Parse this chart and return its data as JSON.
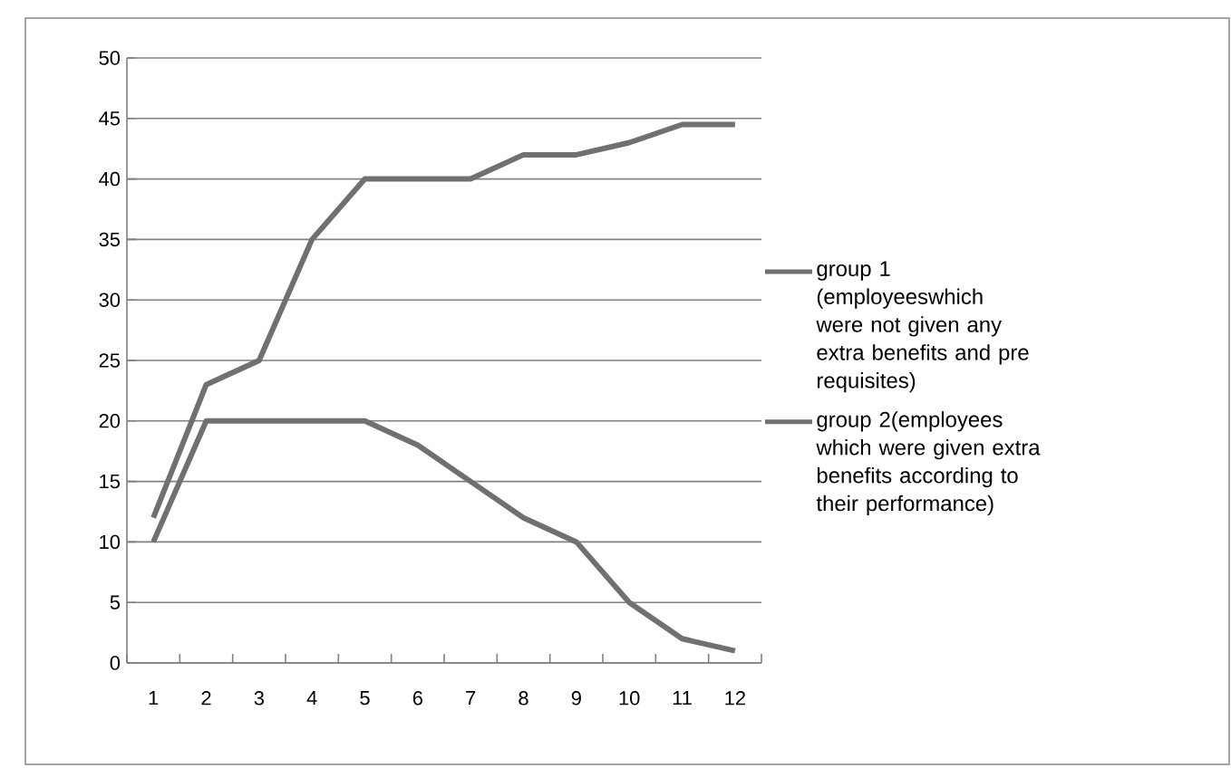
{
  "chart_data": {
    "type": "line",
    "categories": [
      "1",
      "2",
      "3",
      "4",
      "5",
      "6",
      "7",
      "8",
      "9",
      "10",
      "11",
      "12"
    ],
    "series": [
      {
        "name": "group 1 (employeeswhich were not given any extra benefits and pre requisites)",
        "color": "#707070",
        "values": [
          12,
          23,
          25,
          35,
          40,
          40,
          40,
          42,
          42,
          43,
          44.5,
          44.5
        ]
      },
      {
        "name": "group 2(employees which were given extra benefits according to their performance)",
        "color": "#707070",
        "values": [
          10,
          20,
          20,
          20,
          20,
          18,
          15,
          12,
          10,
          5,
          2,
          1
        ]
      }
    ],
    "ylim": [
      0,
      50
    ],
    "yticks": [
      0,
      5,
      10,
      15,
      20,
      25,
      30,
      35,
      40,
      45,
      50
    ],
    "grid": "y",
    "legend": "right",
    "marker": "none",
    "line_style": "solid"
  }
}
